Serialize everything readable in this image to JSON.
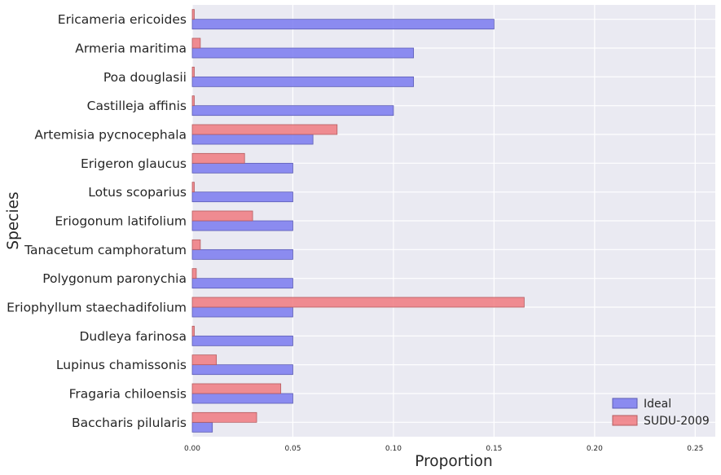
{
  "chart_data": {
    "type": "bar",
    "orientation": "horizontal",
    "xlabel": "Proportion",
    "ylabel": "Species",
    "xlim": [
      0,
      0.26
    ],
    "xticks": [
      0.0,
      0.05,
      0.1,
      0.15,
      0.2,
      0.25
    ],
    "xtick_labels": [
      "0.00",
      "0.05",
      "0.10",
      "0.15",
      "0.20",
      "0.25"
    ],
    "grid": true,
    "legend_position": "bottom-right",
    "categories": [
      "Ericameria ericoides",
      "Armeria maritima",
      "Poa douglasii",
      "Castilleja affinis",
      "Artemisia pycnocephala",
      "Erigeron glaucus",
      "Lotus scoparius",
      "Eriogonum latifolium",
      "Tanacetum camphoratum",
      "Polygonum paronychia",
      "Eriophyllum staechadifolium",
      "Dudleya farinosa",
      "Lupinus chamissonis",
      "Fragaria chiloensis",
      "Baccharis pilularis"
    ],
    "series": [
      {
        "name": "Ideal",
        "color": "#7a7af0",
        "values": [
          0.15,
          0.11,
          0.11,
          0.1,
          0.06,
          0.05,
          0.05,
          0.05,
          0.05,
          0.05,
          0.05,
          0.05,
          0.05,
          0.05,
          0.01
        ]
      },
      {
        "name": "SUDU-2009",
        "color": "#f07a80",
        "values": [
          0.001,
          0.004,
          0.001,
          0.001,
          0.072,
          0.026,
          0.001,
          0.03,
          0.004,
          0.002,
          0.165,
          0.001,
          0.012,
          0.044,
          0.032
        ]
      }
    ]
  }
}
